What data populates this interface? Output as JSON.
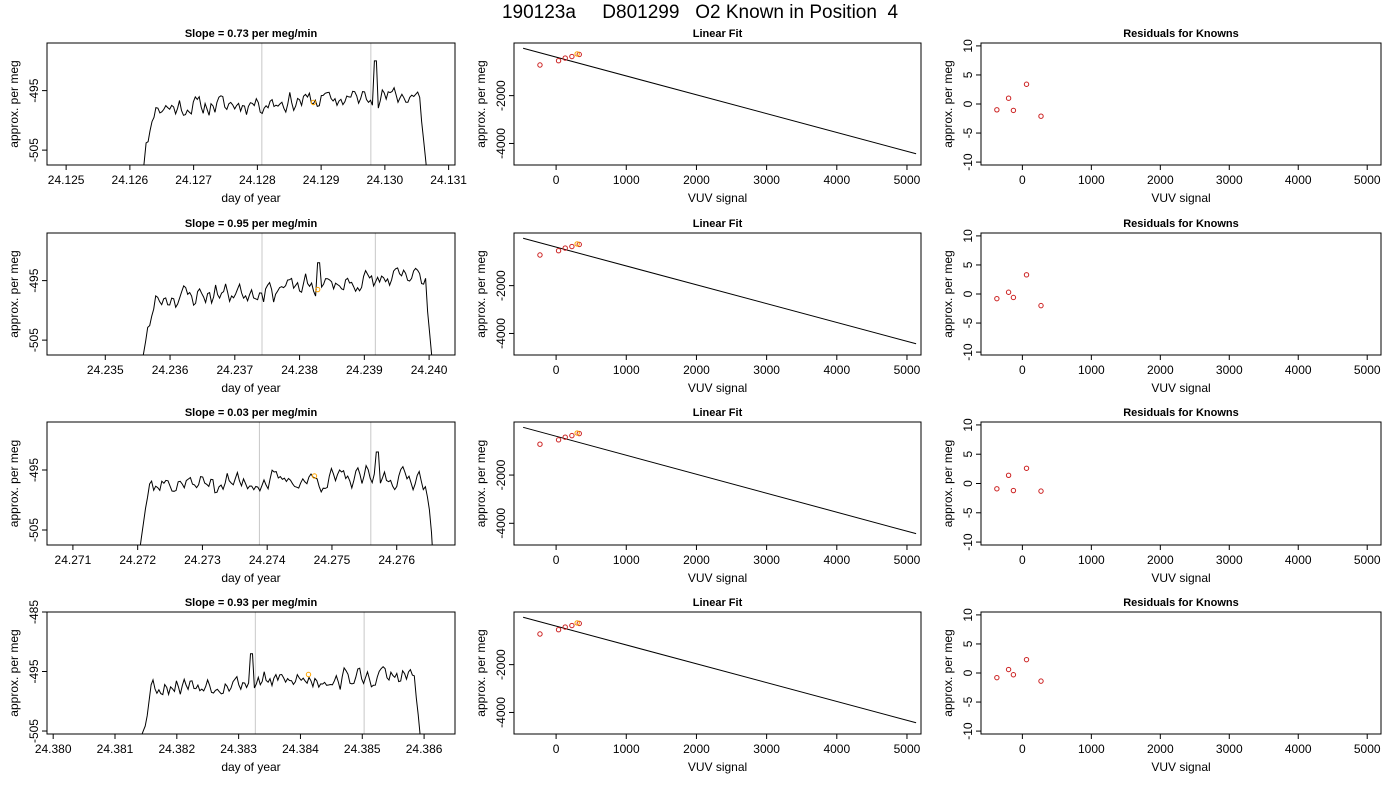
{
  "figure": {
    "title": "190123a     D801299   O2 Known in Position  4",
    "colors": {
      "line": "#000000",
      "grid": "#c8c8c8",
      "marker": "#ffa500",
      "residual": "#cc2222"
    }
  },
  "chart_data": [
    {
      "type": "line",
      "title": "Slope =  0.73  per meg/min",
      "xlabel": "day of year",
      "ylabel": "approx. per meg",
      "xticks": [
        "24.125",
        "24.126",
        "24.127",
        "24.128",
        "24.129",
        "24.130",
        "24.131"
      ],
      "yticks": [
        "-505",
        "-495"
      ],
      "xlim": [
        24.1247,
        24.1311
      ],
      "ylim": [
        -507.5,
        -487
      ],
      "vlines": [
        24.12807,
        24.12978
      ],
      "marker": {
        "x": 24.12888,
        "y": -497
      },
      "series": {
        "x_start": 24.1261,
        "x_end": 24.1307,
        "count": 150,
        "seed": 11,
        "start_y": -514,
        "plateau_y": -498,
        "end_y": -514,
        "trend": 2.5,
        "amplitude": 2.2,
        "spike": {
          "x": 24.12985,
          "y": -490
        }
      }
    },
    {
      "type": "line",
      "title": "Linear Fit",
      "xlabel": "VUV signal",
      "ylabel": "approx. per meg",
      "xticks": [
        "0",
        "1000",
        "2000",
        "3000",
        "4000",
        "5000"
      ],
      "yticks": [
        "-4000",
        "-2000"
      ],
      "xlim": [
        -600,
        5200
      ],
      "ylim": [
        -4900,
        200
      ],
      "fit": {
        "x": [
          -470,
          5130
        ],
        "y": [
          -20,
          -4430
        ]
      },
      "points": [
        {
          "x": 330,
          "y": -280
        },
        {
          "x": 225,
          "y": -365
        },
        {
          "x": 130,
          "y": -430
        },
        {
          "x": 35,
          "y": -540
        },
        {
          "x": -230,
          "y": -720
        }
      ],
      "known": {
        "x": 300,
        "y": -257
      }
    },
    {
      "type": "scatter",
      "title": "Residuals for Knowns",
      "xlabel": "VUV signal",
      "ylabel": "approx. per meg",
      "xticks": [
        "0",
        "1000",
        "2000",
        "3000",
        "4000",
        "5000"
      ],
      "yticks": [
        "-10",
        "-5",
        "0",
        "5",
        "10"
      ],
      "xlim": [
        -600,
        5200
      ],
      "ylim": [
        -10.5,
        10.5
      ],
      "points": [
        {
          "x": -370,
          "y": -1.0
        },
        {
          "x": -200,
          "y": 1.0
        },
        {
          "x": -130,
          "y": -1.1
        },
        {
          "x": 60,
          "y": 3.4
        },
        {
          "x": 270,
          "y": -2.1
        }
      ]
    },
    {
      "type": "line",
      "title": "Slope =  0.95  per meg/min",
      "xlabel": "day of year",
      "ylabel": "approx. per meg",
      "xticks": [
        "24.235",
        "24.236",
        "24.237",
        "24.238",
        "24.239",
        "24.240"
      ],
      "yticks": [
        "-505",
        "-495"
      ],
      "xlim": [
        24.2341,
        24.2404
      ],
      "ylim": [
        -507.5,
        -487
      ],
      "vlines": [
        24.23742,
        24.23917
      ],
      "marker": {
        "x": 24.23828,
        "y": -496.5
      },
      "series": {
        "x_start": 24.2355,
        "x_end": 24.2401,
        "count": 150,
        "seed": 23,
        "start_y": -512,
        "plateau_y": -498,
        "end_y": -514,
        "trend": 4,
        "amplitude": 2.4,
        "spike": {
          "x": 24.2383,
          "y": -492
        }
      }
    },
    {
      "type": "line",
      "title": "Linear Fit",
      "xlabel": "VUV signal",
      "ylabel": "approx. per meg",
      "xticks": [
        "0",
        "1000",
        "2000",
        "3000",
        "4000",
        "5000"
      ],
      "yticks": [
        "-4000",
        "-2000"
      ],
      "xlim": [
        -600,
        5200
      ],
      "ylim": [
        -4900,
        200
      ],
      "fit": {
        "x": [
          -470,
          5130
        ],
        "y": [
          -20,
          -4430
        ]
      },
      "points": [
        {
          "x": 330,
          "y": -280
        },
        {
          "x": 225,
          "y": -365
        },
        {
          "x": 130,
          "y": -430
        },
        {
          "x": 35,
          "y": -540
        },
        {
          "x": -230,
          "y": -720
        }
      ],
      "known": {
        "x": 300,
        "y": -257
      }
    },
    {
      "type": "scatter",
      "title": "Residuals for Knowns",
      "xlabel": "VUV signal",
      "ylabel": "approx. per meg",
      "xticks": [
        "0",
        "1000",
        "2000",
        "3000",
        "4000",
        "5000"
      ],
      "yticks": [
        "-10",
        "-5",
        "0",
        "5",
        "10"
      ],
      "xlim": [
        -600,
        5200
      ],
      "ylim": [
        -10.5,
        10.5
      ],
      "points": [
        {
          "x": -370,
          "y": -0.8
        },
        {
          "x": -200,
          "y": 0.3
        },
        {
          "x": -130,
          "y": -0.6
        },
        {
          "x": 60,
          "y": 3.3
        },
        {
          "x": 270,
          "y": -2.0
        }
      ]
    },
    {
      "type": "line",
      "title": "Slope =  0.03  per meg/min",
      "xlabel": "day of year",
      "ylabel": "approx. per meg",
      "xticks": [
        "24.271",
        "24.272",
        "24.273",
        "24.274",
        "24.275",
        "24.276"
      ],
      "yticks": [
        "-505",
        "-495"
      ],
      "xlim": [
        24.2706,
        24.2769
      ],
      "ylim": [
        -507.5,
        -487
      ],
      "vlines": [
        24.27388,
        24.2756
      ],
      "marker": {
        "x": 24.27473,
        "y": -496
      },
      "series": {
        "x_start": 24.2719,
        "x_end": 24.2766,
        "count": 150,
        "seed": 37,
        "start_y": -514,
        "plateau_y": -497.5,
        "end_y": -514,
        "trend": 1.5,
        "amplitude": 2.3,
        "spike": {
          "x": 24.2757,
          "y": -492
        }
      }
    },
    {
      "type": "line",
      "title": "Linear Fit",
      "xlabel": "VUV signal",
      "ylabel": "approx. per meg",
      "xticks": [
        "0",
        "1000",
        "2000",
        "3000",
        "4000",
        "5000"
      ],
      "yticks": [
        "-4000",
        "-2000"
      ],
      "xlim": [
        -600,
        5200
      ],
      "ylim": [
        -4900,
        200
      ],
      "fit": {
        "x": [
          -470,
          5130
        ],
        "y": [
          -20,
          -4430
        ]
      },
      "points": [
        {
          "x": 330,
          "y": -280
        },
        {
          "x": 225,
          "y": -365
        },
        {
          "x": 130,
          "y": -430
        },
        {
          "x": 35,
          "y": -540
        },
        {
          "x": -230,
          "y": -720
        }
      ],
      "known": {
        "x": 300,
        "y": -257
      }
    },
    {
      "type": "scatter",
      "title": "Residuals for Knowns",
      "xlabel": "VUV signal",
      "ylabel": "approx. per meg",
      "xticks": [
        "0",
        "1000",
        "2000",
        "3000",
        "4000",
        "5000"
      ],
      "yticks": [
        "-10",
        "-5",
        "0",
        "5",
        "10"
      ],
      "xlim": [
        -600,
        5200
      ],
      "ylim": [
        -10.5,
        10.5
      ],
      "points": [
        {
          "x": -370,
          "y": -0.9
        },
        {
          "x": -200,
          "y": 1.4
        },
        {
          "x": -130,
          "y": -1.2
        },
        {
          "x": 60,
          "y": 2.6
        },
        {
          "x": 270,
          "y": -1.3
        }
      ]
    },
    {
      "type": "line",
      "title": "Slope =  0.93  per meg/min",
      "xlabel": "day of year",
      "ylabel": "approx. per meg",
      "xticks": [
        "24.380",
        "24.381",
        "24.382",
        "24.383",
        "24.384",
        "24.385",
        "24.386"
      ],
      "yticks": [
        "-505",
        "-495",
        "-485"
      ],
      "xlim": [
        24.3799,
        24.3865
      ],
      "ylim": [
        -505.5,
        -485
      ],
      "vlines": [
        24.38327,
        24.38503
      ],
      "marker": {
        "x": 24.38413,
        "y": -495.5
      },
      "series": {
        "x_start": 24.3813,
        "x_end": 24.386,
        "count": 150,
        "seed": 53,
        "start_y": -514,
        "plateau_y": -497.5,
        "end_y": -514,
        "trend": 2,
        "amplitude": 2.2,
        "spike": {
          "x": 24.3832,
          "y": -492
        }
      }
    },
    {
      "type": "line",
      "title": "Linear Fit",
      "xlabel": "VUV signal",
      "ylabel": "approx. per meg",
      "xticks": [
        "0",
        "1000",
        "2000",
        "3000",
        "4000",
        "5000"
      ],
      "yticks": [
        "-4000",
        "-2000"
      ],
      "xlim": [
        -600,
        5200
      ],
      "ylim": [
        -4900,
        200
      ],
      "fit": {
        "x": [
          -470,
          5130
        ],
        "y": [
          -20,
          -4430
        ]
      },
      "points": [
        {
          "x": 330,
          "y": -280
        },
        {
          "x": 225,
          "y": -365
        },
        {
          "x": 130,
          "y": -430
        },
        {
          "x": 35,
          "y": -540
        },
        {
          "x": -230,
          "y": -720
        }
      ],
      "known": {
        "x": 300,
        "y": -257
      }
    },
    {
      "type": "scatter",
      "title": "Residuals for Knowns",
      "xlabel": "VUV signal",
      "ylabel": "approx. per meg",
      "xticks": [
        "0",
        "1000",
        "2000",
        "3000",
        "4000",
        "5000"
      ],
      "yticks": [
        "-10",
        "-5",
        "0",
        "5",
        "10"
      ],
      "xlim": [
        -600,
        5200
      ],
      "ylim": [
        -10.5,
        10.5
      ],
      "points": [
        {
          "x": -370,
          "y": -0.8
        },
        {
          "x": -200,
          "y": 0.6
        },
        {
          "x": -130,
          "y": -0.3
        },
        {
          "x": 60,
          "y": 2.3
        },
        {
          "x": 270,
          "y": -1.4
        }
      ]
    }
  ]
}
